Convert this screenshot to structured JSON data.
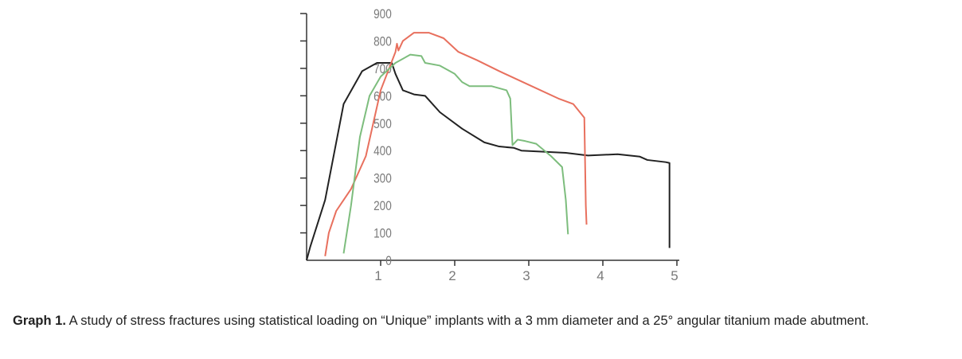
{
  "chart_data": {
    "type": "line",
    "title": "",
    "xlabel": "",
    "ylabel": "",
    "xlim": [
      0,
      5
    ],
    "ylim": [
      0,
      900
    ],
    "xticks": [
      "1",
      "2",
      "3",
      "4",
      "5"
    ],
    "yticks": [
      "0",
      "100",
      "200",
      "300",
      "400",
      "500",
      "600",
      "700",
      "800",
      "900"
    ],
    "grid": false,
    "series": [
      {
        "name": "black",
        "color": "#222222",
        "points": [
          [
            0,
            0
          ],
          [
            0.05,
            50
          ],
          [
            0.25,
            220
          ],
          [
            0.5,
            570
          ],
          [
            0.75,
            690
          ],
          [
            0.95,
            720
          ],
          [
            1.15,
            720
          ],
          [
            1.2,
            680
          ],
          [
            1.3,
            620
          ],
          [
            1.45,
            605
          ],
          [
            1.6,
            600
          ],
          [
            1.8,
            540
          ],
          [
            2.1,
            480
          ],
          [
            2.4,
            430
          ],
          [
            2.6,
            415
          ],
          [
            2.8,
            410
          ],
          [
            2.9,
            400
          ],
          [
            3.5,
            392
          ],
          [
            3.8,
            382
          ],
          [
            4.2,
            387
          ],
          [
            4.5,
            378
          ],
          [
            4.6,
            366
          ],
          [
            4.85,
            358
          ],
          [
            4.9,
            355
          ],
          [
            4.9,
            45
          ]
        ]
      },
      {
        "name": "red",
        "color": "#e8705e",
        "points": [
          [
            0.25,
            15
          ],
          [
            0.3,
            100
          ],
          [
            0.4,
            180
          ],
          [
            0.6,
            260
          ],
          [
            0.8,
            380
          ],
          [
            1.0,
            620
          ],
          [
            1.2,
            760
          ],
          [
            1.22,
            790
          ],
          [
            1.24,
            765
          ],
          [
            1.3,
            800
          ],
          [
            1.45,
            830
          ],
          [
            1.65,
            830
          ],
          [
            1.85,
            810
          ],
          [
            2.05,
            760
          ],
          [
            2.3,
            730
          ],
          [
            2.6,
            690
          ],
          [
            3.0,
            640
          ],
          [
            3.4,
            590
          ],
          [
            3.6,
            570
          ],
          [
            3.75,
            520
          ],
          [
            3.77,
            200
          ],
          [
            3.78,
            130
          ]
        ]
      },
      {
        "name": "green",
        "color": "#7dbd7d",
        "points": [
          [
            0.5,
            25
          ],
          [
            0.6,
            200
          ],
          [
            0.72,
            450
          ],
          [
            0.85,
            600
          ],
          [
            1.0,
            670
          ],
          [
            1.2,
            720
          ],
          [
            1.4,
            750
          ],
          [
            1.55,
            745
          ],
          [
            1.6,
            720
          ],
          [
            1.8,
            710
          ],
          [
            2.0,
            680
          ],
          [
            2.1,
            650
          ],
          [
            2.2,
            635
          ],
          [
            2.5,
            635
          ],
          [
            2.7,
            620
          ],
          [
            2.75,
            590
          ],
          [
            2.78,
            420
          ],
          [
            2.85,
            440
          ],
          [
            2.95,
            435
          ],
          [
            3.1,
            425
          ],
          [
            3.3,
            380
          ],
          [
            3.45,
            340
          ],
          [
            3.5,
            220
          ],
          [
            3.53,
            95
          ]
        ]
      }
    ]
  },
  "caption": {
    "label": "Graph 1.",
    "text": " A study of stress fractures using statistical loading on “Unique” implants with a 3 mm diameter and a 25° angular titanium made abutment."
  }
}
